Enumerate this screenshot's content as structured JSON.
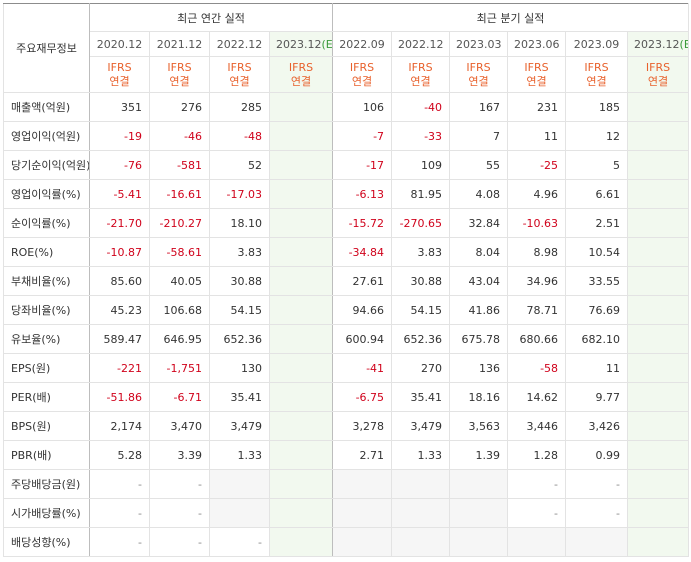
{
  "header": {
    "label_column": "주요재무정보",
    "annual_group": "최근 연간 실적",
    "quarterly_group": "최근 분기 실적",
    "annual_periods": [
      "2020.12",
      "2021.12",
      "2022.12",
      "2023.12"
    ],
    "quarterly_periods": [
      "2022.09",
      "2022.12",
      "2023.03",
      "2023.06",
      "2023.09",
      "2023.12"
    ],
    "estimate_suffix": "(E)",
    "standard_line1": "IFRS",
    "standard_line2": "연결"
  },
  "colors": {
    "negative": "#d0021b",
    "ifrs": "#e8612c",
    "estimate_bg": "#f2f9ef"
  },
  "rows": [
    {
      "label": "매출액(억원)",
      "values": [
        "351",
        "276",
        "285",
        "",
        "106",
        "-40",
        "167",
        "231",
        "185",
        ""
      ]
    },
    {
      "label": "영업이익(억원)",
      "values": [
        "-19",
        "-46",
        "-48",
        "",
        "-7",
        "-33",
        "7",
        "11",
        "12",
        ""
      ]
    },
    {
      "label": "당기순이익(억원)",
      "values": [
        "-76",
        "-581",
        "52",
        "",
        "-17",
        "109",
        "55",
        "-25",
        "5",
        ""
      ]
    },
    {
      "label": "영업이익률(%)",
      "values": [
        "-5.41",
        "-16.61",
        "-17.03",
        "",
        "-6.13",
        "81.95",
        "4.08",
        "4.96",
        "6.61",
        ""
      ]
    },
    {
      "label": "순이익률(%)",
      "values": [
        "-21.70",
        "-210.27",
        "18.10",
        "",
        "-15.72",
        "-270.65",
        "32.84",
        "-10.63",
        "2.51",
        ""
      ]
    },
    {
      "label": "ROE(%)",
      "values": [
        "-10.87",
        "-58.61",
        "3.83",
        "",
        "-34.84",
        "3.83",
        "8.04",
        "8.98",
        "10.54",
        ""
      ]
    },
    {
      "label": "부채비율(%)",
      "values": [
        "85.60",
        "40.05",
        "30.88",
        "",
        "27.61",
        "30.88",
        "43.04",
        "34.96",
        "33.55",
        ""
      ]
    },
    {
      "label": "당좌비율(%)",
      "values": [
        "45.23",
        "106.68",
        "54.15",
        "",
        "94.66",
        "54.15",
        "41.86",
        "78.71",
        "76.69",
        ""
      ]
    },
    {
      "label": "유보율(%)",
      "values": [
        "589.47",
        "646.95",
        "652.36",
        "",
        "600.94",
        "652.36",
        "675.78",
        "680.66",
        "682.10",
        ""
      ]
    },
    {
      "label": "EPS(원)",
      "values": [
        "-221",
        "-1,751",
        "130",
        "",
        "-41",
        "270",
        "136",
        "-58",
        "11",
        ""
      ]
    },
    {
      "label": "PER(배)",
      "values": [
        "-51.86",
        "-6.71",
        "35.41",
        "",
        "-6.75",
        "35.41",
        "18.16",
        "14.62",
        "9.77",
        ""
      ]
    },
    {
      "label": "BPS(원)",
      "values": [
        "2,174",
        "3,470",
        "3,479",
        "",
        "3,278",
        "3,479",
        "3,563",
        "3,446",
        "3,426",
        ""
      ]
    },
    {
      "label": "PBR(배)",
      "values": [
        "5.28",
        "3.39",
        "1.33",
        "",
        "2.71",
        "1.33",
        "1.39",
        "1.28",
        "0.99",
        ""
      ]
    },
    {
      "label": "주당배당금(원)",
      "values": [
        "-",
        "-",
        "",
        "",
        "",
        "",
        "",
        "-",
        "-",
        ""
      ]
    },
    {
      "label": "시가배당률(%)",
      "values": [
        "-",
        "-",
        "",
        "",
        "",
        "",
        "",
        "-",
        "-",
        ""
      ]
    },
    {
      "label": "배당성향(%)",
      "values": [
        "-",
        "-",
        "-",
        "",
        "",
        "",
        "",
        "",
        "",
        ""
      ]
    }
  ],
  "negative_rule": "values starting with - are shown in red"
}
